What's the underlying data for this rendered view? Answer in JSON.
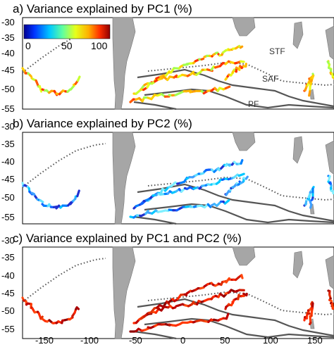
{
  "panels": [
    {
      "title": "a) Variance explained by PC1 (%)",
      "palette": "mixed"
    },
    {
      "title": "b) Variance explained by PC2 (%)",
      "palette": "blue"
    },
    {
      "title": "c) Variance explained by PC1 and PC2 (%)",
      "palette": "red"
    }
  ],
  "y_ticks": [
    "-30",
    "-35",
    "-40",
    "-45",
    "-50",
    "-55"
  ],
  "x_ticks": [
    "-150",
    "-100",
    "-50",
    "0",
    "50",
    "100",
    "150"
  ],
  "fronts": {
    "stf": "STF",
    "saf": "SAF",
    "pf": "PF"
  },
  "colorbar": {
    "ticks": [
      "0",
      "50",
      "100"
    ]
  },
  "colors": {
    "land": "#a6a6a6",
    "front_line": "#555555"
  }
}
